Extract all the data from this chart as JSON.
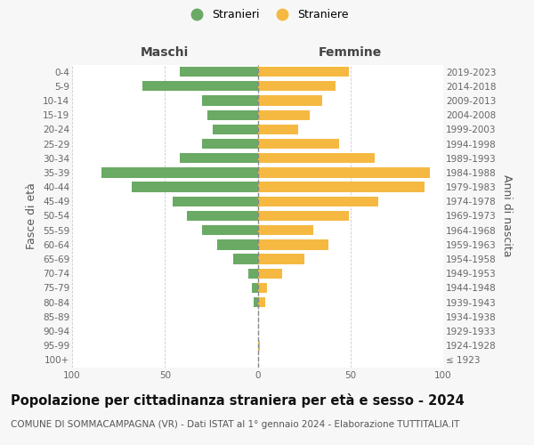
{
  "age_groups": [
    "100+",
    "95-99",
    "90-94",
    "85-89",
    "80-84",
    "75-79",
    "70-74",
    "65-69",
    "60-64",
    "55-59",
    "50-54",
    "45-49",
    "40-44",
    "35-39",
    "30-34",
    "25-29",
    "20-24",
    "15-19",
    "10-14",
    "5-9",
    "0-4"
  ],
  "birth_years": [
    "≤ 1923",
    "1924-1928",
    "1929-1933",
    "1934-1938",
    "1939-1943",
    "1944-1948",
    "1949-1953",
    "1954-1958",
    "1959-1963",
    "1964-1968",
    "1969-1973",
    "1974-1978",
    "1979-1983",
    "1984-1988",
    "1989-1993",
    "1994-1998",
    "1999-2003",
    "2004-2008",
    "2009-2013",
    "2014-2018",
    "2019-2023"
  ],
  "maschi": [
    0,
    0,
    0,
    0,
    2,
    3,
    5,
    13,
    22,
    30,
    38,
    46,
    68,
    84,
    42,
    30,
    24,
    27,
    30,
    62,
    42
  ],
  "femmine": [
    0,
    1,
    0,
    0,
    4,
    5,
    13,
    25,
    38,
    30,
    49,
    65,
    90,
    93,
    63,
    44,
    22,
    28,
    35,
    42,
    49
  ],
  "maschi_color": "#6aaa64",
  "femmine_color": "#f5b942",
  "background_color": "#f7f7f7",
  "plot_bg_color": "#ffffff",
  "grid_color": "#cccccc",
  "title": "Popolazione per cittadinanza straniera per età e sesso - 2024",
  "subtitle": "COMUNE DI SOMMACAMPAGNA (VR) - Dati ISTAT al 1° gennaio 2024 - Elaborazione TUTTITALIA.IT",
  "ylabel_left": "Fasce di età",
  "ylabel_right": "Anni di nascita",
  "label_maschi": "Maschi",
  "label_femmine": "Femmine",
  "legend_stranieri": "Stranieri",
  "legend_straniere": "Straniere",
  "xlim": 100,
  "title_fontsize": 10.5,
  "subtitle_fontsize": 7.5,
  "tick_fontsize": 7.5,
  "label_fontsize": 9
}
